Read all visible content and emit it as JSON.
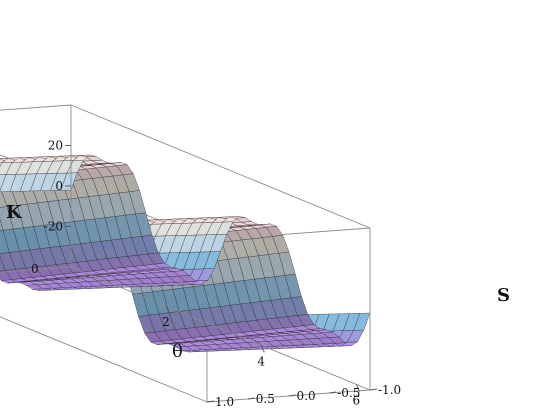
{
  "chart_data": {
    "type": "surface3d",
    "title": "",
    "x_axis": {
      "label": "θ",
      "range": [
        0,
        6.2832
      ],
      "ticks": [
        2,
        4,
        6
      ],
      "tick_labels": [
        "2",
        "4",
        "6"
      ]
    },
    "y_axis": {
      "label": "S",
      "range": [
        -1.0,
        1.0
      ],
      "ticks": [
        -1.0,
        -0.5,
        0.0,
        0.5,
        1.0
      ],
      "tick_labels": [
        "-1.0",
        "-0.5",
        "0.0",
        "0.5",
        "1.0"
      ]
    },
    "z_axis": {
      "label": "K",
      "range": [
        -40,
        40
      ],
      "ticks": [
        20,
        0,
        -20
      ],
      "tick_labels": [
        "20",
        "0",
        "-20"
      ],
      "extra_tick_label": "0"
    },
    "surface": {
      "description_of_shape": "Periodic in θ (two periods over 0–2π), nearly constant in S; tall ridges near θ≈π/4 and θ≈5π/4, deep troughs near θ≈3π/4 and θ≈7π/4",
      "peak_theta": [
        0.79,
        3.93
      ],
      "trough_theta": [
        2.36,
        5.5
      ],
      "z_clip": [
        -40,
        40
      ]
    },
    "colors": {
      "high": "#e36fa0",
      "mid": "#f2f0e6",
      "low_blue": "#8fc8ef",
      "deep": "#6c6ae0",
      "mesh": "#2a2a2a"
    },
    "box": true,
    "grid": false
  }
}
